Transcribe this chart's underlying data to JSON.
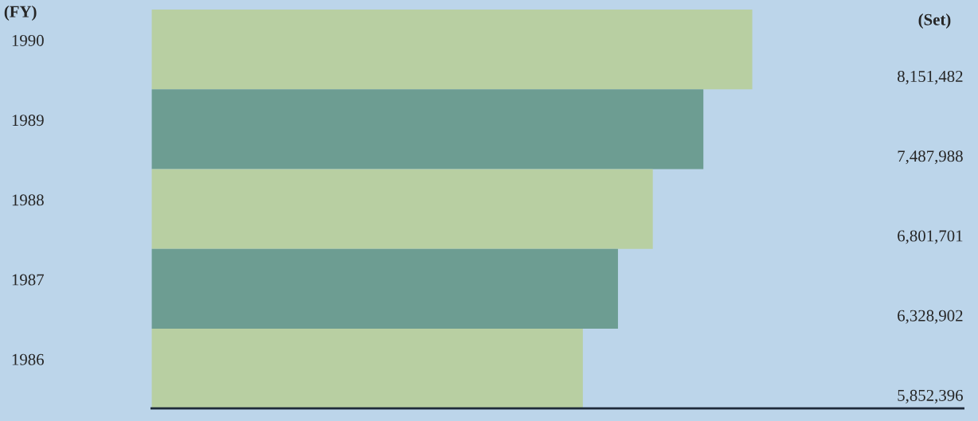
{
  "chart_data": {
    "type": "bar",
    "orientation": "horizontal",
    "ylabel": "(FY)",
    "annotations": [
      "(Set)"
    ],
    "categories": [
      "1990",
      "1989",
      "1988",
      "1987",
      "1986"
    ],
    "values": [
      8151482,
      7487988,
      6801701,
      6328902,
      5852396
    ],
    "colors": [
      "#b8d69b",
      "#65a596",
      "#b8d69b",
      "#65a596",
      "#b8d69b"
    ],
    "value_labels": [
      "8,151,482",
      "7,487,988",
      "6,801,701",
      "6,328,902",
      "5,852,396"
    ],
    "tick_labels": "y",
    "grid": false,
    "legend": false
  }
}
